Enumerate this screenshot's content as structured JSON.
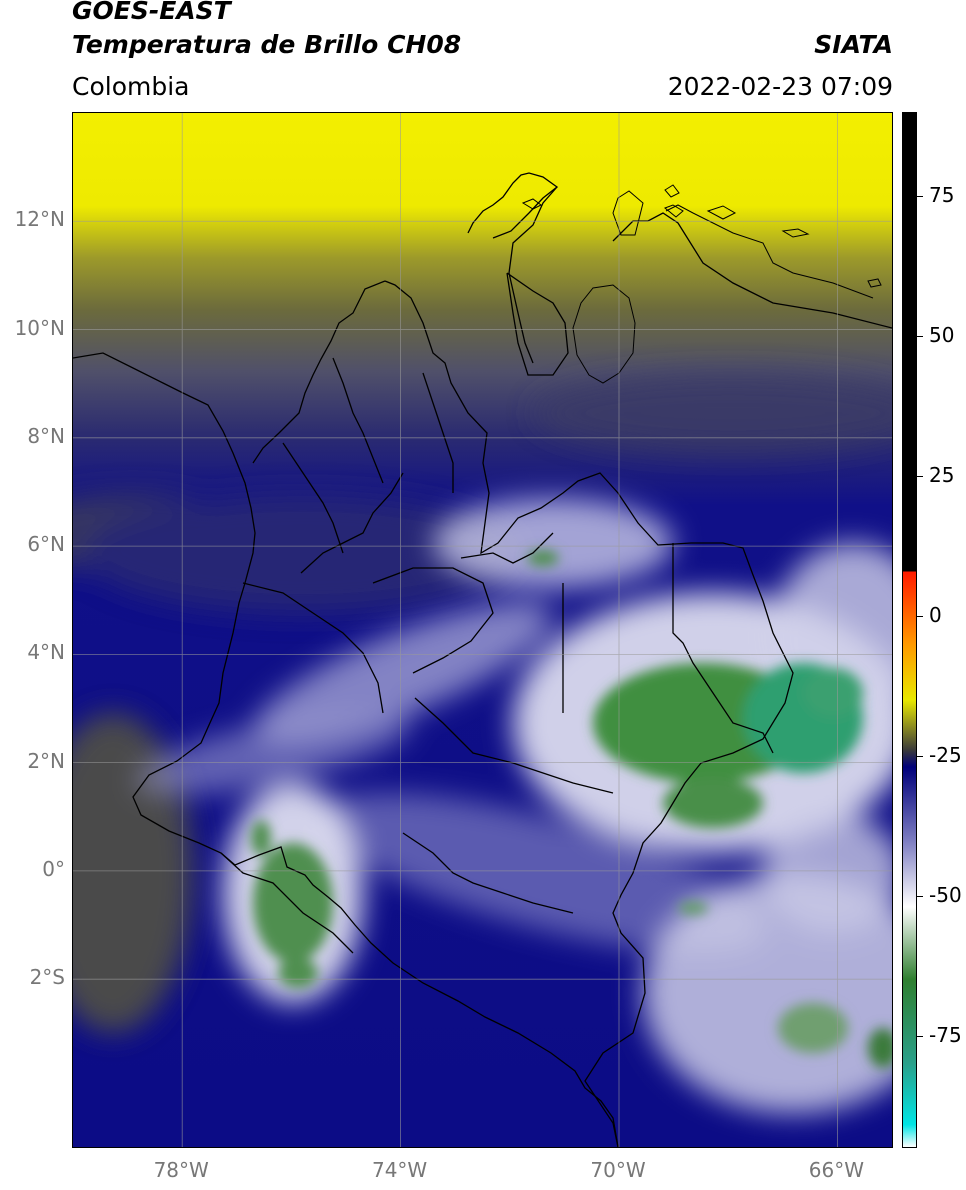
{
  "header": {
    "title_line1": "GOES-EAST",
    "title_line2": "Temperatura de Brillo CH08",
    "organization": "SIATA",
    "region": "Colombia",
    "datetime": "2022-02-23 07:09"
  },
  "map": {
    "lat_ticks": [
      {
        "label": "12°N",
        "lat": 12
      },
      {
        "label": "10°N",
        "lat": 10
      },
      {
        "label": "8°N",
        "lat": 8
      },
      {
        "label": "6°N",
        "lat": 6
      },
      {
        "label": "4°N",
        "lat": 4
      },
      {
        "label": "2°N",
        "lat": 2
      },
      {
        "label": "0°",
        "lat": 0
      },
      {
        "label": "2°S",
        "lat": -2
      }
    ],
    "lon_ticks": [
      {
        "label": "78°W",
        "lon": -78
      },
      {
        "label": "74°W",
        "lon": -74
      },
      {
        "label": "70°W",
        "lon": -70
      },
      {
        "label": "66°W",
        "lon": -66
      }
    ],
    "extent": {
      "lon_min": -80,
      "lon_max": -65,
      "lat_min": -5.1,
      "lat_max": 14
    },
    "colors": {
      "dry_high": "#f5f000",
      "mid": "#595959",
      "moist": "#0a0a8a",
      "cloud": "#ffffff",
      "cold_top": "#3a8a3a",
      "border": "#000000",
      "grid": "#9a9a9a"
    }
  },
  "colorbar": {
    "range": [
      -95,
      90
    ],
    "ticks": [
      {
        "label": "75",
        "value": 75
      },
      {
        "label": "50",
        "value": 50
      },
      {
        "label": "25",
        "value": 25
      },
      {
        "label": "0",
        "value": 0
      },
      {
        "label": "-25",
        "value": -25
      },
      {
        "label": "-50",
        "value": -50
      },
      {
        "label": "-75",
        "value": -75
      }
    ],
    "stops": [
      {
        "value": -95,
        "color": "#ffffff"
      },
      {
        "value": -91,
        "color": "#00e5e5"
      },
      {
        "value": -80,
        "color": "#2aa08a"
      },
      {
        "value": -65,
        "color": "#2f7f2f"
      },
      {
        "value": -52,
        "color": "#ffffff"
      },
      {
        "value": -40,
        "color": "#7b7bc0"
      },
      {
        "value": -27,
        "color": "#00007a"
      },
      {
        "value": -24,
        "color": "#3a3a3a"
      },
      {
        "value": -15,
        "color": "#e8e800"
      },
      {
        "value": -5,
        "color": "#ff9900"
      },
      {
        "value": 8,
        "color": "#ff1a00"
      },
      {
        "value": 8.01,
        "color": "#000000"
      },
      {
        "value": 90,
        "color": "#000000"
      }
    ]
  }
}
